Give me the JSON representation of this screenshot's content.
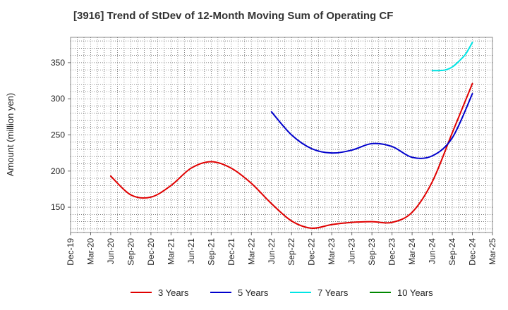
{
  "chart_data": {
    "type": "line",
    "title": "[3916]  Trend of StDev of 12-Month Moving Sum of Operating CF",
    "xlabel": "",
    "ylabel": "Amount (million yen)",
    "ylim": [
      115,
      385
    ],
    "yticks": [
      150,
      200,
      250,
      300,
      350
    ],
    "x_ticks": [
      "Dec-19",
      "Mar-20",
      "Jun-20",
      "Sep-20",
      "Dec-20",
      "Mar-21",
      "Jun-21",
      "Sep-21",
      "Dec-21",
      "Mar-22",
      "Jun-22",
      "Sep-22",
      "Dec-22",
      "Mar-23",
      "Jun-23",
      "Sep-23",
      "Dec-23",
      "Mar-24",
      "Jun-24",
      "Sep-24",
      "Dec-24",
      "Mar-25"
    ],
    "grid": true,
    "legend_position": "bottom",
    "series": [
      {
        "name": "3 Years",
        "color": "#e00000",
        "points": [
          [
            "Jun-20",
            193
          ],
          [
            "Sep-20",
            167
          ],
          [
            "Dec-20",
            164
          ],
          [
            "Mar-21",
            180
          ],
          [
            "Jun-21",
            204
          ],
          [
            "Sep-21",
            213
          ],
          [
            "Dec-21",
            204
          ],
          [
            "Mar-22",
            183
          ],
          [
            "Jun-22",
            155
          ],
          [
            "Sep-22",
            131
          ],
          [
            "Dec-22",
            121
          ],
          [
            "Mar-23",
            126
          ],
          [
            "Jun-23",
            129
          ],
          [
            "Sep-23",
            130
          ],
          [
            "Dec-23",
            129
          ],
          [
            "Mar-24",
            143
          ],
          [
            "Jun-24",
            185
          ],
          [
            "Sep-24",
            253
          ],
          [
            "Dec-24",
            321
          ]
        ]
      },
      {
        "name": "5 Years",
        "color": "#0000cc",
        "points": [
          [
            "Jun-22",
            282
          ],
          [
            "Sep-22",
            250
          ],
          [
            "Dec-22",
            231
          ],
          [
            "Mar-23",
            225
          ],
          [
            "Jun-23",
            229
          ],
          [
            "Sep-23",
            238
          ],
          [
            "Dec-23",
            234
          ],
          [
            "Mar-24",
            219
          ],
          [
            "Jun-24",
            221
          ],
          [
            "Sep-24",
            246
          ],
          [
            "Dec-24",
            307
          ]
        ]
      },
      {
        "name": "7 Years",
        "color": "#00e5e5",
        "points": [
          [
            "Jun-24",
            339
          ],
          [
            "Jul-24",
            339
          ],
          [
            "Aug-24",
            340
          ],
          [
            "Sep-24",
            344
          ],
          [
            "Oct-24",
            352
          ],
          [
            "Nov-24",
            362
          ],
          [
            "Dec-24",
            378
          ]
        ]
      },
      {
        "name": "10 Years",
        "color": "#008800",
        "points": []
      }
    ]
  }
}
